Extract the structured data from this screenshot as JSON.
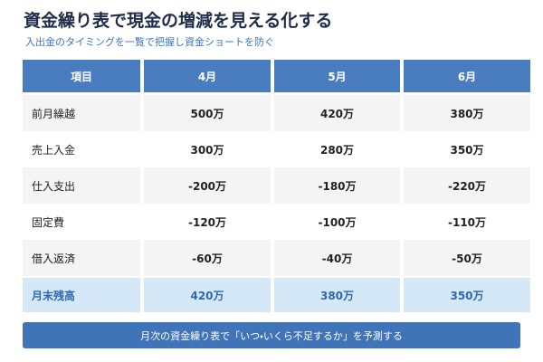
{
  "header": {
    "title": "資金繰り表で現金の増減を見える化する",
    "subtitle": "入出金のタイミングを一覧で把握し資金ショートを防ぐ"
  },
  "table": {
    "columns": [
      "項目",
      "4月",
      "5月",
      "6月"
    ],
    "rows": [
      [
        "前月繰越",
        "500万",
        "420万",
        "380万"
      ],
      [
        "売上入金",
        "300万",
        "280万",
        "350万"
      ],
      [
        "仕入支出",
        "-200万",
        "-180万",
        "-220万"
      ],
      [
        "固定費",
        "-120万",
        "-100万",
        "-110万"
      ],
      [
        "借入返済",
        "-60万",
        "-40万",
        "-50万"
      ],
      [
        "月末残高",
        "420万",
        "380万",
        "350万"
      ]
    ]
  },
  "footer": {
    "note": "月次の資金繰り表で「いつ・いくら不足するか」を予測する"
  }
}
